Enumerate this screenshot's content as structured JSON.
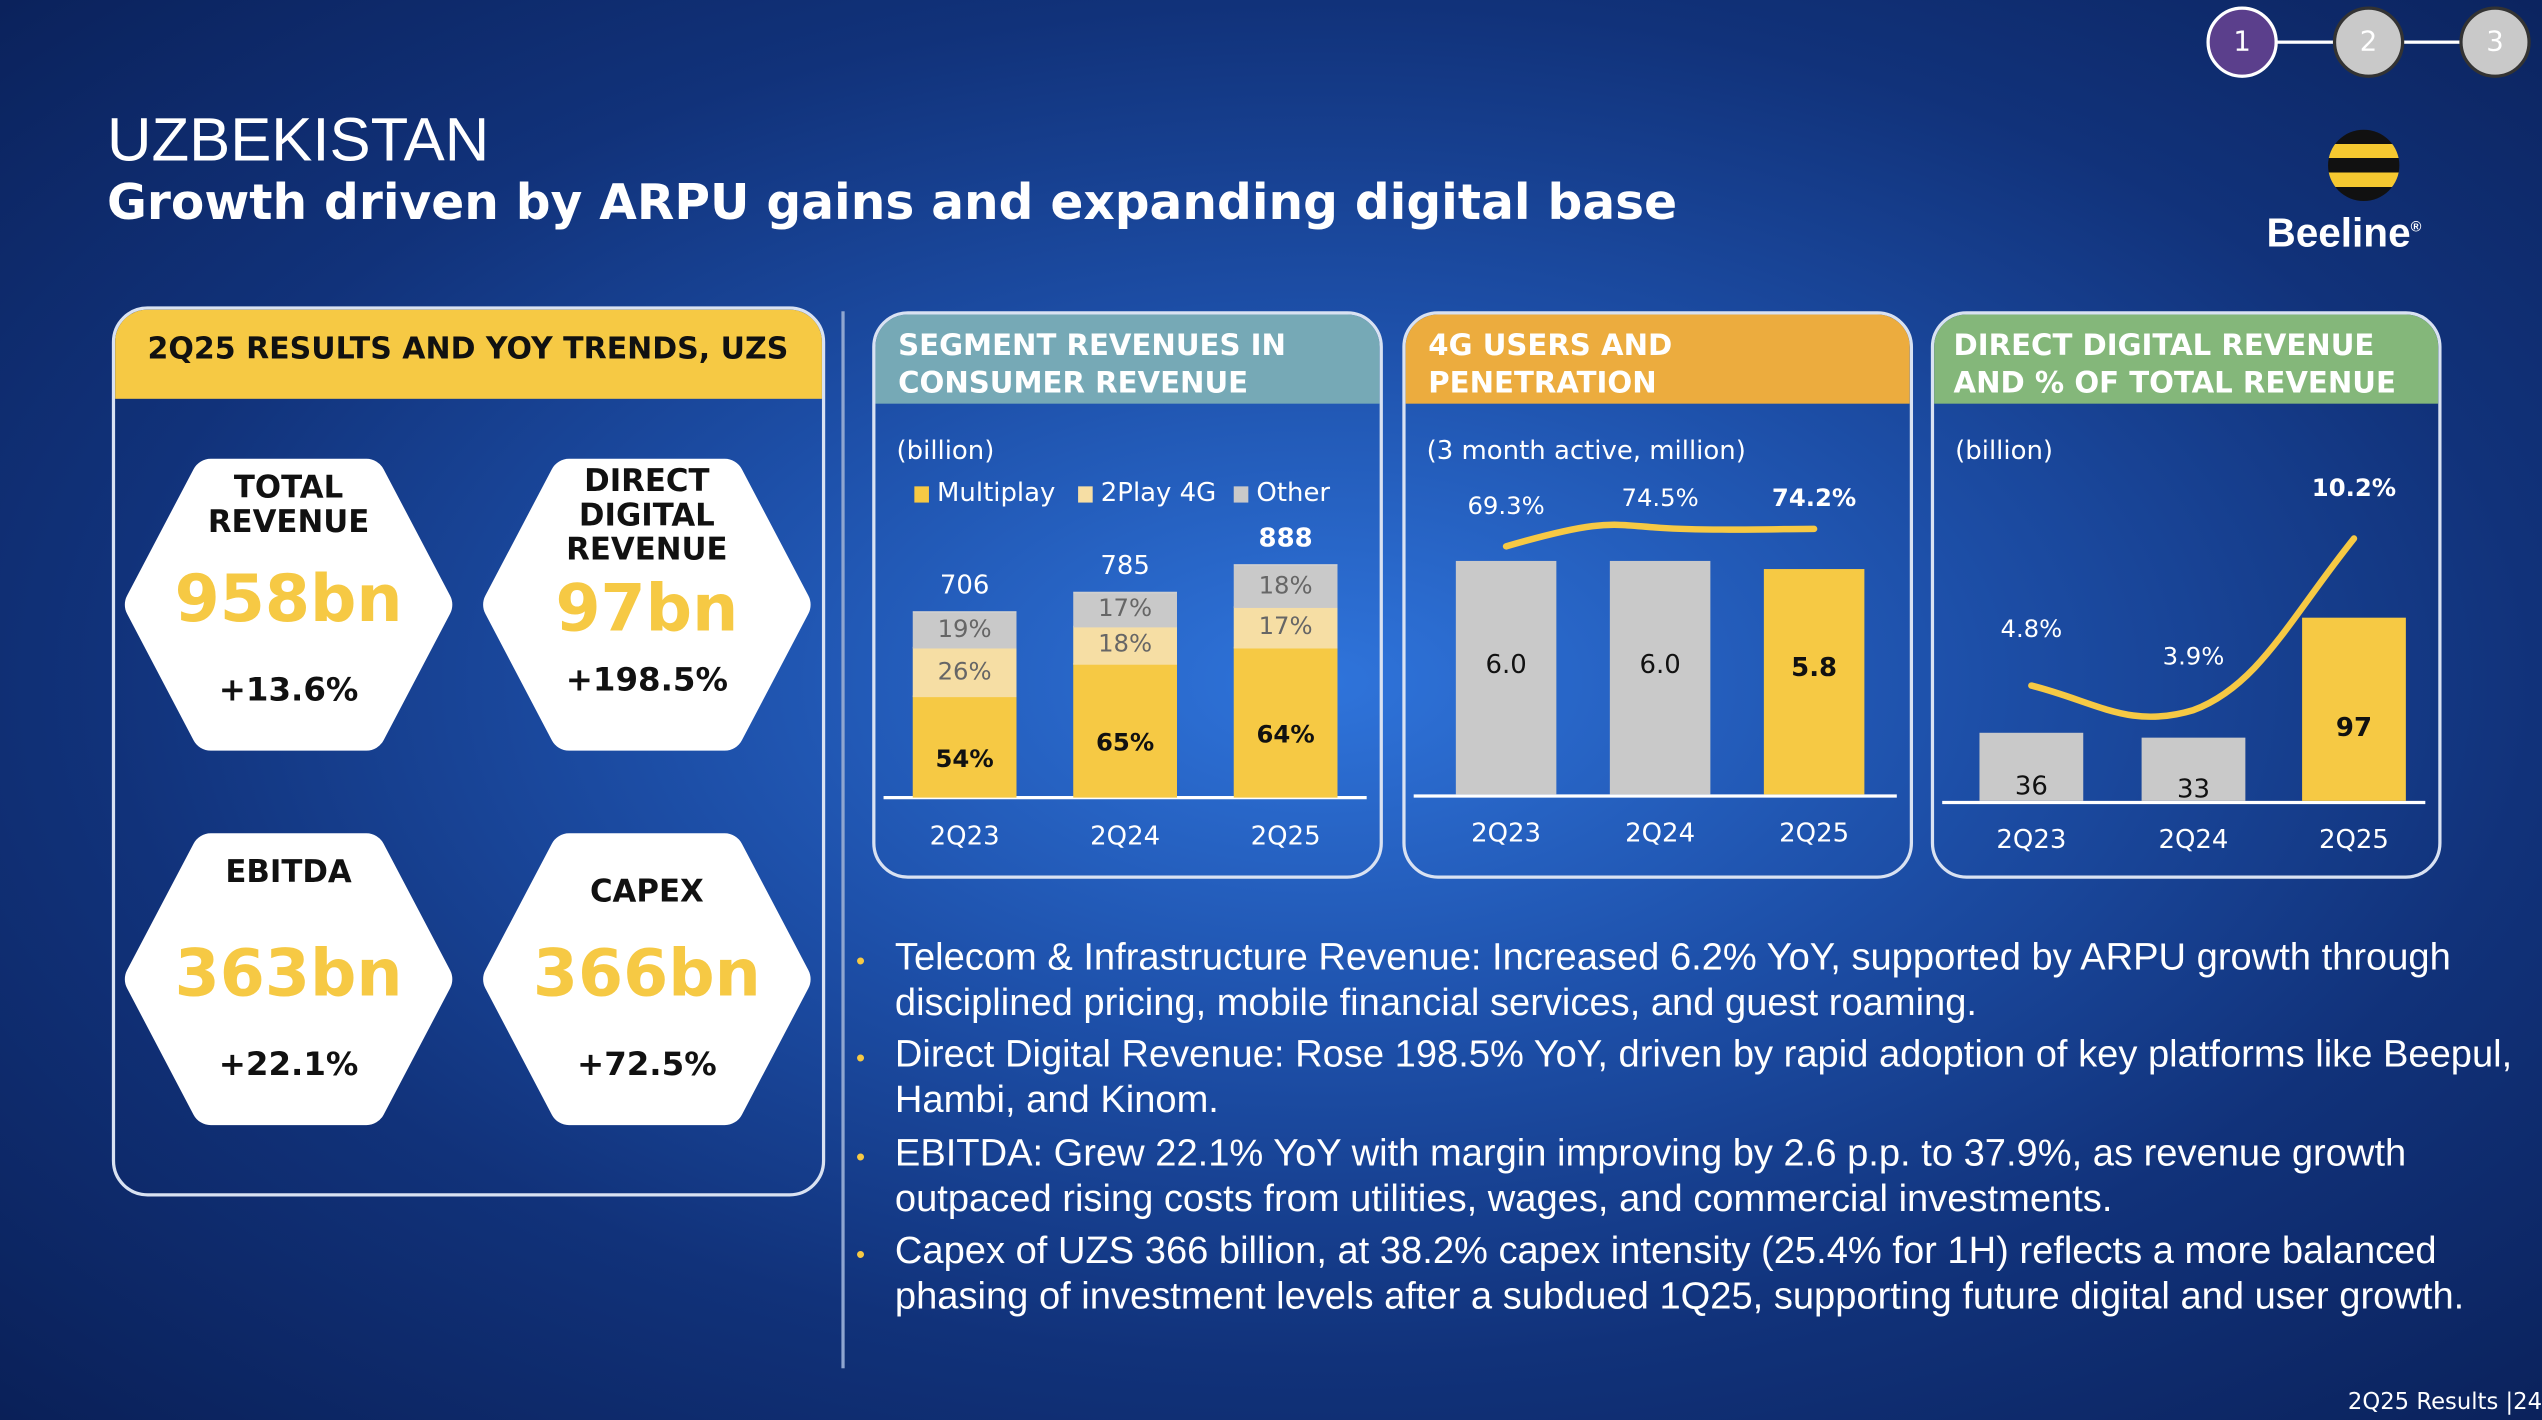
{
  "header": {
    "country": "UZBEKISTAN",
    "subtitle": "Growth driven by ARPU gains and expanding digital base"
  },
  "stepper": {
    "steps": [
      "1",
      "2",
      "3"
    ],
    "active": 1
  },
  "logo": {
    "text": "Beeline",
    "reg": "®"
  },
  "results": {
    "title": "2Q25 RESULTS AND YOY TRENDS, UZS",
    "kpis": [
      {
        "label": "TOTAL\nREVENUE",
        "value": "958bn",
        "change": "+13.6%"
      },
      {
        "label": "DIRECT\nDIGITAL\nREVENUE",
        "value": "97bn",
        "change": "+198.5%"
      },
      {
        "label": "EBITDA",
        "value": "363bn",
        "change": "+22.1%"
      },
      {
        "label": "CAPEX",
        "value": "366bn",
        "change": "+72.5%"
      }
    ]
  },
  "colors": {
    "yellow": "#f6c944",
    "light_yellow": "#f6dea4",
    "gray": "#c9c9c9",
    "teal": "#76a9b6",
    "orange": "#ecac3e",
    "green": "#84b77a"
  },
  "chart_data": [
    {
      "type": "bar",
      "title": "SEGMENT REVENUES IN CONSUMER REVENUE",
      "unit": "(billion)",
      "categories": [
        "2Q23",
        "2Q24",
        "2Q25"
      ],
      "totals": [
        "706",
        "785",
        "888"
      ],
      "totals_num": [
        706,
        785,
        888
      ],
      "series": [
        {
          "name": "Multiplay",
          "values": [
            54,
            65,
            64
          ],
          "labels": [
            "54%",
            "65%",
            "64%"
          ]
        },
        {
          "name": "2Play 4G",
          "values": [
            26,
            18,
            17
          ],
          "labels": [
            "26%",
            "18%",
            "17%"
          ]
        },
        {
          "name": "Other",
          "values": [
            19,
            17,
            18
          ],
          "labels": [
            "19%",
            "17%",
            "18%"
          ]
        }
      ]
    },
    {
      "type": "bar",
      "title": "4G USERS AND PENETRATION",
      "unit": "(3 month active, million)",
      "categories": [
        "2Q23",
        "2Q24",
        "2Q25"
      ],
      "values": [
        6.0,
        6.0,
        5.8
      ],
      "value_labels": [
        "6.0",
        "6.0",
        "5.8"
      ],
      "line": {
        "values": [
          69.3,
          74.5,
          74.2
        ],
        "labels": [
          "69.3%",
          "74.5%",
          "74.2%"
        ]
      }
    },
    {
      "type": "bar",
      "title": "DIRECT DIGITAL REVENUE AND % OF TOTAL REVENUE",
      "unit": "(billion)",
      "categories": [
        "2Q23",
        "2Q24",
        "2Q25"
      ],
      "values": [
        36,
        33,
        97
      ],
      "value_labels": [
        "36",
        "33",
        "97"
      ],
      "line": {
        "values": [
          4.8,
          3.9,
          10.2
        ],
        "labels": [
          "4.8%",
          "3.9%",
          "10.2%"
        ]
      }
    }
  ],
  "bullets": [
    "Telecom & Infrastructure Revenue: Increased 6.2% YoY, supported by ARPU growth through disciplined pricing, mobile financial services, and guest roaming.",
    "Direct Digital Revenue: Rose 198.5% YoY, driven by rapid adoption of key platforms like Beepul, Hambi, and Kinom.",
    "EBITDA: Grew 22.1% YoY with margin improving by 2.6 p.p. to 37.9%, as revenue growth outpaced rising costs from utilities, wages, and commercial investments.",
    "Capex of UZS 366 billion, at 38.2% capex intensity (25.4% for 1H) reflects a more balanced phasing of investment levels after a subdued 1Q25, supporting future digital and user growth."
  ],
  "footer": "2Q25 Results |24"
}
